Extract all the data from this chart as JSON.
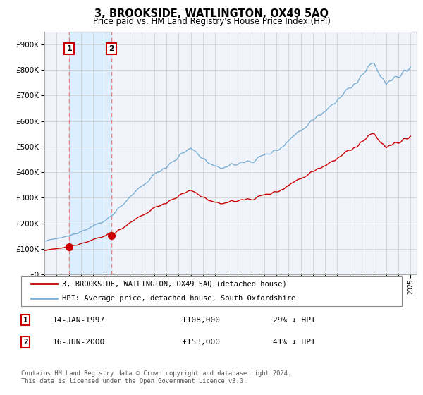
{
  "title": "3, BROOKSIDE, WATLINGTON, OX49 5AQ",
  "subtitle": "Price paid vs. HM Land Registry's House Price Index (HPI)",
  "sale1_year_float": 1997.04,
  "sale1_price": 108000,
  "sale1_label": "14-JAN-1997",
  "sale1_pct": "29% ↓ HPI",
  "sale2_year_float": 2000.46,
  "sale2_price": 153000,
  "sale2_label": "16-JUN-2000",
  "sale2_pct": "41% ↓ HPI",
  "legend_line1": "3, BROOKSIDE, WATLINGTON, OX49 5AQ (detached house)",
  "legend_line2": "HPI: Average price, detached house, South Oxfordshire",
  "footer": "Contains HM Land Registry data © Crown copyright and database right 2024.\nThis data is licensed under the Open Government Licence v3.0.",
  "hpi_color": "#7bafd4",
  "price_color": "#cc0000",
  "vline_color": "#e88080",
  "highlight_color": "#ddeeff",
  "bg_color": "#f0f4fa",
  "ylim_max": 950000,
  "ylim_min": 0,
  "xmin": 1995.0,
  "xmax": 2025.5
}
